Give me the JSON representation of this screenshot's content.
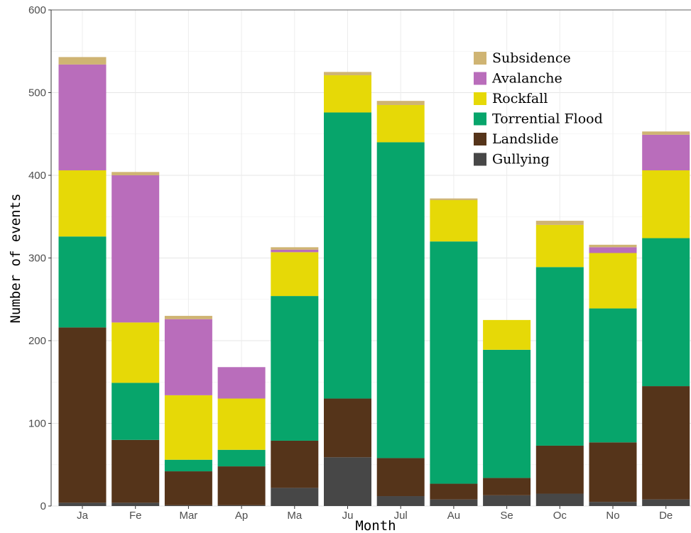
{
  "chart_data": {
    "type": "bar",
    "stacked": true,
    "xlabel": "Month",
    "ylabel": "Number of events",
    "ylim": [
      0,
      600
    ],
    "yticks": [
      0,
      100,
      200,
      300,
      400,
      500,
      600
    ],
    "grid": true,
    "legend_position": "top-right",
    "categories": [
      "Ja",
      "Fe",
      "Mar",
      "Ap",
      "Ma",
      "Ju",
      "Jul",
      "Au",
      "Se",
      "Oc",
      "No",
      "De"
    ],
    "series": [
      {
        "name": "Gullying",
        "color": "#474747",
        "values": [
          4,
          4,
          1,
          1,
          22,
          59,
          12,
          8,
          13,
          15,
          5,
          8
        ]
      },
      {
        "name": "Landslide",
        "color": "#55341A",
        "values": [
          212,
          76,
          41,
          47,
          57,
          71,
          46,
          19,
          21,
          58,
          72,
          137
        ]
      },
      {
        "name": "Torrential Flood",
        "color": "#07A56B",
        "values": [
          110,
          69,
          14,
          20,
          175,
          346,
          382,
          293,
          155,
          216,
          162,
          179
        ]
      },
      {
        "name": "Rockfall",
        "color": "#E6D907",
        "values": [
          80,
          73,
          78,
          62,
          53,
          45,
          45,
          50,
          36,
          51,
          67,
          82
        ]
      },
      {
        "name": "Avalanche",
        "color": "#B96DBB",
        "values": [
          128,
          178,
          92,
          38,
          3,
          0,
          0,
          0,
          0,
          0,
          7,
          43
        ]
      },
      {
        "name": "Subsidence",
        "color": "#CFB473",
        "values": [
          9,
          4,
          4,
          0,
          3,
          4,
          5,
          2,
          0,
          5,
          3,
          4
        ]
      }
    ]
  }
}
